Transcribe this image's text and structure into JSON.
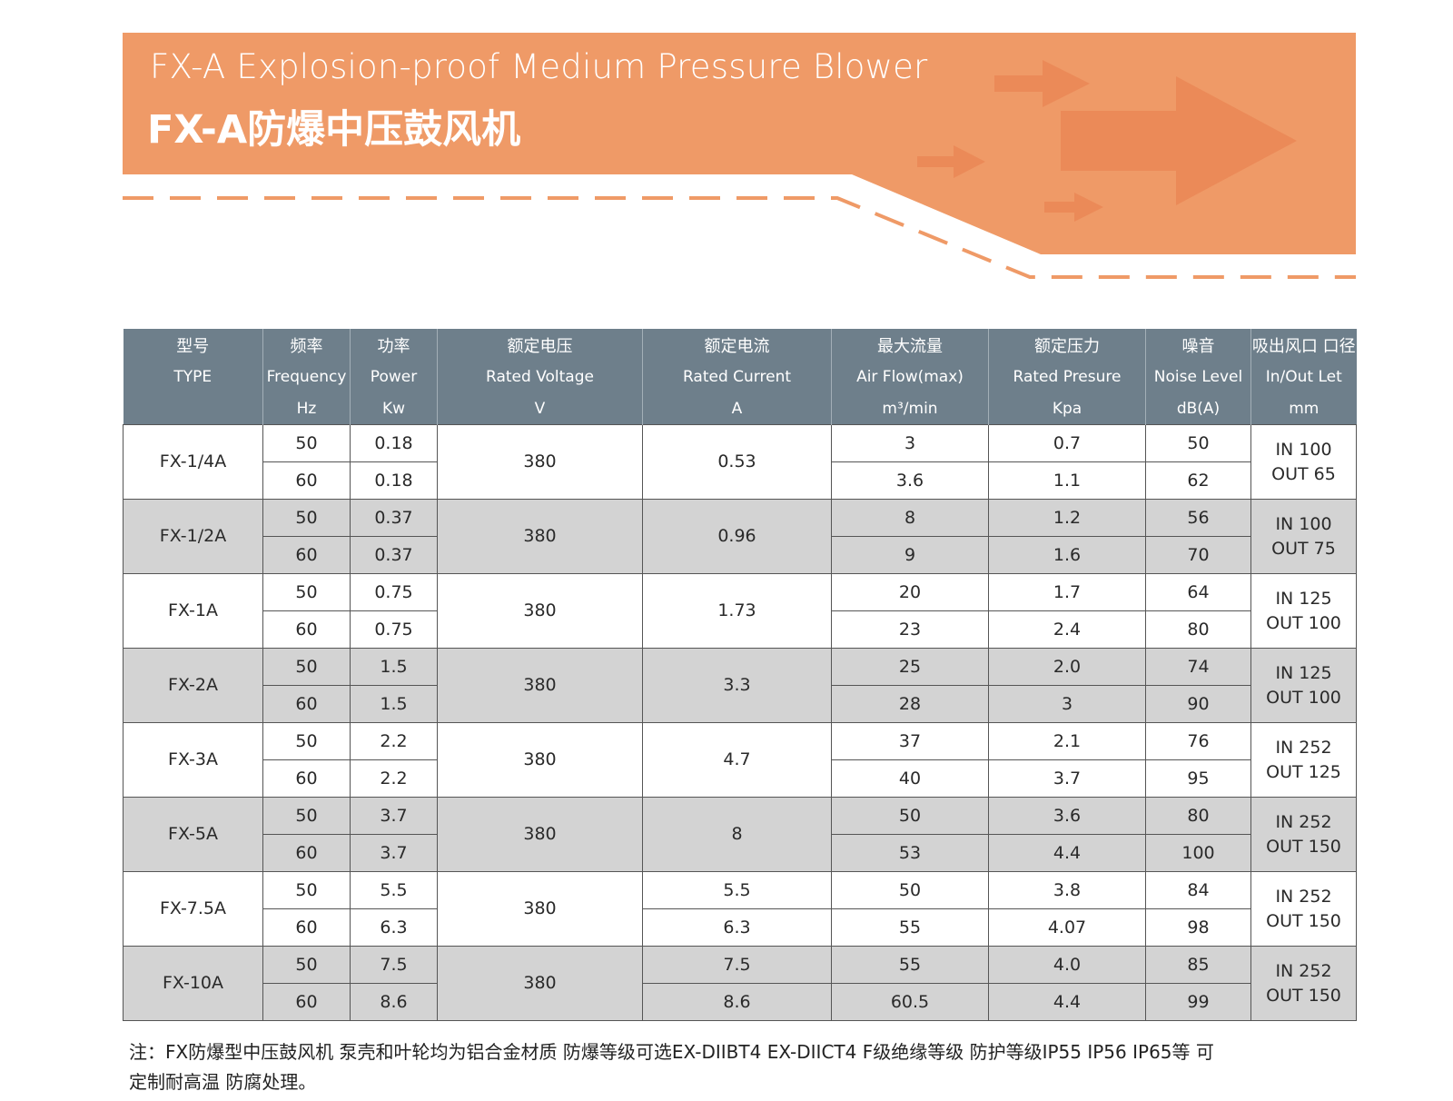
{
  "header": {
    "title_en": "FX-A Explosion-proof Medium Pressure Blower",
    "title_cn": "FX-A防爆中压鼓风机",
    "banner_color": "#ef9a67",
    "arrow_color": "#eb8a58"
  },
  "table": {
    "head_cn": [
      "型号",
      "频率",
      "功率",
      "额定电压",
      "额定电流",
      "最大流量",
      "额定压力",
      "噪音",
      "吸出风口 口径"
    ],
    "head_en": [
      "TYPE",
      "Frequency",
      "Power",
      "Rated Voltage",
      "Rated Current",
      "Air Flow(max)",
      "Rated Presure",
      "Noise Level",
      "In/Out Let"
    ],
    "head_unit": [
      "",
      "Hz",
      "Kw",
      "V",
      "A",
      "m³/min",
      "Kpa",
      "dB(A)",
      "mm"
    ],
    "models": [
      {
        "type": "FX-1/4A",
        "voltage": "380",
        "current": [
          "0.53"
        ],
        "inlet": "IN 100",
        "outlet": "OUT 65",
        "rows": [
          {
            "hz": "50",
            "kw": "0.18",
            "flow": "3",
            "kpa": "0.7",
            "db": "50"
          },
          {
            "hz": "60",
            "kw": "0.18",
            "flow": "3.6",
            "kpa": "1.1",
            "db": "62"
          }
        ]
      },
      {
        "type": "FX-1/2A",
        "voltage": "380",
        "current": [
          "0.96"
        ],
        "inlet": "IN 100",
        "outlet": "OUT 75",
        "rows": [
          {
            "hz": "50",
            "kw": "0.37",
            "flow": "8",
            "kpa": "1.2",
            "db": "56"
          },
          {
            "hz": "60",
            "kw": "0.37",
            "flow": "9",
            "kpa": "1.6",
            "db": "70"
          }
        ]
      },
      {
        "type": "FX-1A",
        "voltage": "380",
        "current": [
          "1.73"
        ],
        "inlet": "IN 125",
        "outlet": "OUT 100",
        "rows": [
          {
            "hz": "50",
            "kw": "0.75",
            "flow": "20",
            "kpa": "1.7",
            "db": "64"
          },
          {
            "hz": "60",
            "kw": "0.75",
            "flow": "23",
            "kpa": "2.4",
            "db": "80"
          }
        ]
      },
      {
        "type": "FX-2A",
        "voltage": "380",
        "current": [
          "3.3"
        ],
        "inlet": "IN 125",
        "outlet": "OUT 100",
        "rows": [
          {
            "hz": "50",
            "kw": "1.5",
            "flow": "25",
            "kpa": "2.0",
            "db": "74"
          },
          {
            "hz": "60",
            "kw": "1.5",
            "flow": "28",
            "kpa": "3",
            "db": "90"
          }
        ]
      },
      {
        "type": "FX-3A",
        "voltage": "380",
        "current": [
          "4.7"
        ],
        "inlet": "IN 252",
        "outlet": "OUT 125",
        "rows": [
          {
            "hz": "50",
            "kw": "2.2",
            "flow": "37",
            "kpa": "2.1",
            "db": "76"
          },
          {
            "hz": "60",
            "kw": "2.2",
            "flow": "40",
            "kpa": "3.7",
            "db": "95"
          }
        ]
      },
      {
        "type": "FX-5A",
        "voltage": "380",
        "current": [
          "8"
        ],
        "inlet": "IN 252",
        "outlet": "OUT 150",
        "rows": [
          {
            "hz": "50",
            "kw": "3.7",
            "flow": "50",
            "kpa": "3.6",
            "db": "80"
          },
          {
            "hz": "60",
            "kw": "3.7",
            "flow": "53",
            "kpa": "4.4",
            "db": "100"
          }
        ]
      },
      {
        "type": "FX-7.5A",
        "voltage": "380",
        "current": [
          "5.5",
          "6.3"
        ],
        "inlet": "IN 252",
        "outlet": "OUT 150",
        "rows": [
          {
            "hz": "50",
            "kw": "5.5",
            "flow": "50",
            "kpa": "3.8",
            "db": "84"
          },
          {
            "hz": "60",
            "kw": "6.3",
            "flow": "55",
            "kpa": "4.07",
            "db": "98"
          }
        ]
      },
      {
        "type": "FX-10A",
        "voltage": "380",
        "current": [
          "7.5",
          "8.6"
        ],
        "inlet": "IN 252",
        "outlet": "OUT 150",
        "rows": [
          {
            "hz": "50",
            "kw": "7.5",
            "flow": "55",
            "kpa": "4.0",
            "db": "85"
          },
          {
            "hz": "60",
            "kw": "8.6",
            "flow": "60.5",
            "kpa": "4.4",
            "db": "99"
          }
        ]
      }
    ]
  },
  "note": {
    "line1": "注：FX防爆型中压鼓风机 泵壳和叶轮均为铝合金材质 防爆等级可选EX-DIIBT4 EX-DIICT4  F级绝缘等级  防护等级IP55 IP56  IP65等 可",
    "line2": "定制耐高温 防腐处理。"
  }
}
